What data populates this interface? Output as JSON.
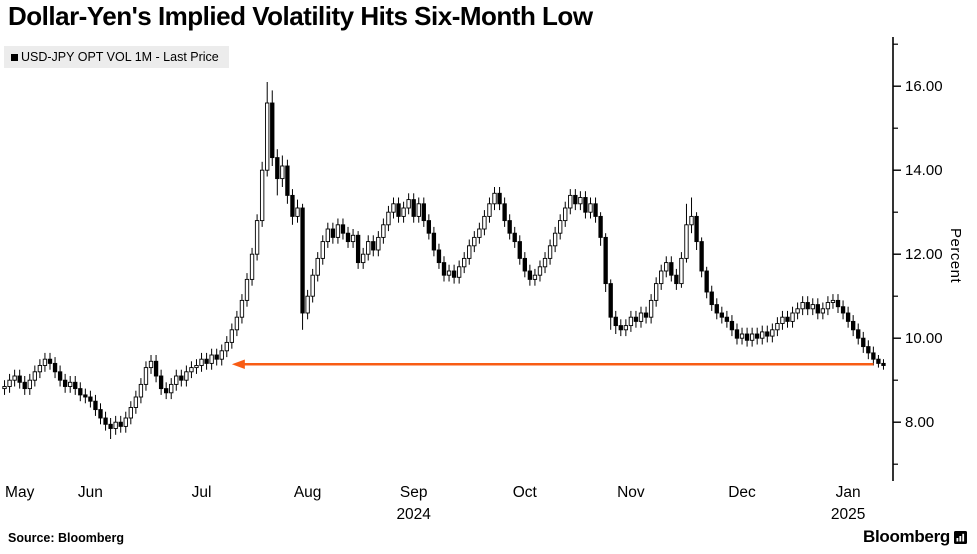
{
  "title": "Dollar-Yen's Implied Volatility Hits Six-Month Low",
  "legend": {
    "marker": "square",
    "label": "USD-JPY OPT VOL 1M - Last Price"
  },
  "source": "Source: Bloomberg",
  "brand": {
    "name": "Bloomberg"
  },
  "colors": {
    "arrow": "#f85c14",
    "candle": "#000000",
    "legend_bg": "#ececec",
    "background": "#ffffff"
  },
  "chart_data": {
    "type": "candlestick",
    "series_name": "USD-JPY OPT VOL 1M - Last Price",
    "title": "Dollar-Yen's Implied Volatility Hits Six-Month Low",
    "ylabel": "Percent",
    "ylim": [
      6.6,
      17.1
    ],
    "yticks_major": [
      8,
      10,
      12,
      14,
      16
    ],
    "ytick_labels": [
      "8.00",
      "10.00",
      "12.00",
      "14.00",
      "16.00"
    ],
    "yticks_minor": [
      7,
      9,
      11,
      13,
      15,
      17
    ],
    "grid": false,
    "legend_position": "top-left",
    "x_axis": {
      "months": [
        {
          "label": "May",
          "index": 3
        },
        {
          "label": "Jun",
          "index": 17
        },
        {
          "label": "Jul",
          "index": 39
        },
        {
          "label": "Aug",
          "index": 60
        },
        {
          "label": "Sep",
          "index": 81
        },
        {
          "label": "Oct",
          "index": 103
        },
        {
          "label": "Nov",
          "index": 124
        },
        {
          "label": "Dec",
          "index": 146
        },
        {
          "label": "Jan",
          "index": 167
        }
      ],
      "years": [
        {
          "label": "2024",
          "index": 81
        },
        {
          "label": "2025",
          "index": 167
        }
      ]
    },
    "annotation_arrow": {
      "y_value": 9.38,
      "from_index": 172,
      "to_index": 45,
      "direction": "left",
      "color": "#f85c14"
    },
    "candles_ohlc": [
      [
        8.8,
        9.0,
        8.65,
        8.85
      ],
      [
        8.85,
        9.15,
        8.7,
        9.0
      ],
      [
        9.0,
        9.25,
        8.85,
        9.1
      ],
      [
        9.1,
        9.25,
        8.8,
        8.95
      ],
      [
        8.95,
        9.1,
        8.65,
        8.8
      ],
      [
        8.8,
        9.15,
        8.65,
        9.0
      ],
      [
        9.0,
        9.35,
        8.85,
        9.2
      ],
      [
        9.2,
        9.5,
        9.05,
        9.35
      ],
      [
        9.35,
        9.65,
        9.2,
        9.5
      ],
      [
        9.5,
        9.65,
        9.25,
        9.4
      ],
      [
        9.4,
        9.55,
        9.05,
        9.2
      ],
      [
        9.2,
        9.35,
        8.85,
        9.0
      ],
      [
        9.0,
        9.15,
        8.7,
        8.85
      ],
      [
        8.85,
        9.1,
        8.7,
        8.95
      ],
      [
        8.95,
        9.1,
        8.65,
        8.8
      ],
      [
        8.8,
        8.95,
        8.5,
        8.65
      ],
      [
        8.65,
        8.8,
        8.45,
        8.6
      ],
      [
        8.6,
        8.75,
        8.35,
        8.5
      ],
      [
        8.5,
        8.65,
        8.15,
        8.3
      ],
      [
        8.3,
        8.45,
        7.95,
        8.1
      ],
      [
        8.1,
        8.25,
        7.8,
        7.95
      ],
      [
        7.95,
        8.1,
        7.6,
        7.85
      ],
      [
        7.85,
        8.15,
        7.7,
        8.0
      ],
      [
        8.0,
        8.15,
        7.75,
        7.9
      ],
      [
        7.9,
        8.25,
        7.75,
        8.1
      ],
      [
        8.1,
        8.5,
        7.95,
        8.35
      ],
      [
        8.35,
        8.75,
        8.2,
        8.6
      ],
      [
        8.6,
        9.05,
        8.45,
        8.9
      ],
      [
        8.9,
        9.45,
        8.75,
        9.3
      ],
      [
        9.3,
        9.6,
        9.15,
        9.45
      ],
      [
        9.45,
        9.6,
        8.95,
        9.1
      ],
      [
        9.1,
        9.25,
        8.65,
        8.8
      ],
      [
        8.8,
        8.95,
        8.55,
        8.7
      ],
      [
        8.7,
        9.05,
        8.55,
        8.9
      ],
      [
        8.9,
        9.25,
        8.75,
        9.1
      ],
      [
        9.1,
        9.25,
        8.85,
        9.0
      ],
      [
        9.0,
        9.35,
        8.85,
        9.2
      ],
      [
        9.2,
        9.45,
        9.05,
        9.3
      ],
      [
        9.3,
        9.5,
        9.15,
        9.35
      ],
      [
        9.35,
        9.65,
        9.2,
        9.5
      ],
      [
        9.5,
        9.65,
        9.25,
        9.4
      ],
      [
        9.4,
        9.75,
        9.25,
        9.6
      ],
      [
        9.6,
        9.75,
        9.35,
        9.5
      ],
      [
        9.5,
        9.85,
        9.35,
        9.7
      ],
      [
        9.7,
        10.05,
        9.55,
        9.9
      ],
      [
        9.9,
        10.35,
        9.75,
        10.2
      ],
      [
        10.2,
        10.65,
        10.05,
        10.5
      ],
      [
        10.5,
        11.05,
        10.35,
        10.9
      ],
      [
        10.9,
        11.55,
        10.75,
        11.4
      ],
      [
        11.4,
        12.15,
        11.25,
        12.0
      ],
      [
        12.0,
        12.95,
        11.85,
        12.8
      ],
      [
        12.8,
        14.2,
        12.65,
        14.0
      ],
      [
        14.0,
        16.1,
        13.85,
        15.6
      ],
      [
        15.6,
        15.9,
        14.1,
        14.3
      ],
      [
        14.3,
        14.5,
        13.4,
        13.8
      ],
      [
        13.8,
        14.35,
        13.6,
        14.1
      ],
      [
        14.1,
        14.25,
        13.2,
        13.4
      ],
      [
        13.4,
        13.55,
        12.7,
        12.9
      ],
      [
        12.9,
        13.3,
        12.75,
        13.1
      ],
      [
        13.1,
        13.2,
        10.2,
        10.6
      ],
      [
        10.6,
        11.15,
        10.45,
        11.0
      ],
      [
        11.0,
        11.65,
        10.85,
        11.5
      ],
      [
        11.5,
        12.05,
        11.35,
        11.9
      ],
      [
        11.9,
        12.45,
        11.75,
        12.3
      ],
      [
        12.3,
        12.75,
        12.15,
        12.6
      ],
      [
        12.6,
        12.75,
        12.25,
        12.4
      ],
      [
        12.4,
        12.85,
        12.25,
        12.7
      ],
      [
        12.7,
        12.85,
        12.35,
        12.5
      ],
      [
        12.5,
        12.65,
        12.15,
        12.3
      ],
      [
        12.3,
        12.6,
        12.15,
        12.45
      ],
      [
        12.45,
        12.55,
        11.65,
        11.8
      ],
      [
        11.8,
        12.15,
        11.65,
        12.0
      ],
      [
        12.0,
        12.45,
        11.85,
        12.3
      ],
      [
        12.3,
        12.45,
        11.95,
        12.1
      ],
      [
        12.1,
        12.55,
        11.95,
        12.4
      ],
      [
        12.4,
        12.85,
        12.25,
        12.7
      ],
      [
        12.7,
        13.15,
        12.55,
        13.0
      ],
      [
        13.0,
        13.35,
        12.85,
        13.2
      ],
      [
        13.2,
        13.35,
        12.75,
        12.9
      ],
      [
        12.9,
        13.25,
        12.75,
        13.1
      ],
      [
        13.1,
        13.45,
        12.95,
        13.3
      ],
      [
        13.3,
        13.45,
        12.75,
        12.9
      ],
      [
        12.9,
        13.35,
        12.75,
        13.2
      ],
      [
        13.2,
        13.35,
        12.65,
        12.8
      ],
      [
        12.8,
        12.95,
        12.35,
        12.5
      ],
      [
        12.5,
        12.65,
        11.95,
        12.1
      ],
      [
        12.1,
        12.25,
        11.65,
        11.8
      ],
      [
        11.8,
        11.95,
        11.35,
        11.5
      ],
      [
        11.5,
        11.75,
        11.35,
        11.6
      ],
      [
        11.6,
        11.75,
        11.3,
        11.45
      ],
      [
        11.45,
        11.85,
        11.3,
        11.7
      ],
      [
        11.7,
        12.05,
        11.55,
        11.9
      ],
      [
        11.9,
        12.35,
        11.75,
        12.2
      ],
      [
        12.2,
        12.55,
        12.05,
        12.4
      ],
      [
        12.4,
        12.75,
        12.25,
        12.6
      ],
      [
        12.6,
        13.05,
        12.45,
        12.9
      ],
      [
        12.9,
        13.35,
        12.75,
        13.2
      ],
      [
        13.2,
        13.6,
        13.05,
        13.45
      ],
      [
        13.45,
        13.6,
        13.05,
        13.2
      ],
      [
        13.2,
        13.35,
        12.65,
        12.8
      ],
      [
        12.8,
        12.95,
        12.35,
        12.5
      ],
      [
        12.5,
        12.65,
        12.15,
        12.3
      ],
      [
        12.3,
        12.45,
        11.75,
        11.9
      ],
      [
        11.9,
        12.05,
        11.45,
        11.6
      ],
      [
        11.6,
        11.75,
        11.25,
        11.4
      ],
      [
        11.4,
        11.65,
        11.25,
        11.5
      ],
      [
        11.5,
        11.85,
        11.35,
        11.7
      ],
      [
        11.7,
        12.05,
        11.55,
        11.9
      ],
      [
        11.9,
        12.35,
        11.75,
        12.2
      ],
      [
        12.2,
        12.65,
        12.05,
        12.5
      ],
      [
        12.5,
        12.95,
        12.35,
        12.8
      ],
      [
        12.8,
        13.25,
        12.65,
        13.1
      ],
      [
        13.1,
        13.55,
        12.95,
        13.4
      ],
      [
        13.4,
        13.55,
        13.05,
        13.2
      ],
      [
        13.2,
        13.5,
        13.05,
        13.35
      ],
      [
        13.35,
        13.5,
        12.85,
        13.0
      ],
      [
        13.0,
        13.35,
        12.85,
        13.2
      ],
      [
        13.2,
        13.35,
        12.75,
        12.9
      ],
      [
        12.9,
        13.0,
        12.2,
        12.4
      ],
      [
        12.4,
        12.5,
        11.1,
        11.3
      ],
      [
        11.3,
        11.4,
        10.2,
        10.5
      ],
      [
        10.5,
        10.65,
        10.1,
        10.3
      ],
      [
        10.3,
        10.45,
        10.05,
        10.2
      ],
      [
        10.2,
        10.45,
        10.05,
        10.3
      ],
      [
        10.3,
        10.65,
        10.15,
        10.5
      ],
      [
        10.5,
        10.65,
        10.25,
        10.4
      ],
      [
        10.4,
        10.75,
        10.25,
        10.6
      ],
      [
        10.6,
        10.75,
        10.35,
        10.5
      ],
      [
        10.5,
        11.05,
        10.35,
        10.9
      ],
      [
        10.9,
        11.45,
        10.75,
        11.3
      ],
      [
        11.3,
        11.75,
        11.15,
        11.6
      ],
      [
        11.6,
        11.95,
        11.45,
        11.8
      ],
      [
        11.8,
        11.95,
        11.35,
        11.5
      ],
      [
        11.5,
        11.65,
        11.15,
        11.3
      ],
      [
        11.3,
        12.05,
        11.2,
        11.9
      ],
      [
        11.9,
        13.2,
        11.8,
        12.7
      ],
      [
        12.7,
        13.35,
        12.5,
        12.9
      ],
      [
        12.9,
        13.0,
        12.1,
        12.3
      ],
      [
        12.3,
        12.4,
        11.45,
        11.6
      ],
      [
        11.6,
        11.7,
        10.95,
        11.1
      ],
      [
        11.1,
        11.25,
        10.65,
        10.8
      ],
      [
        10.8,
        10.95,
        10.45,
        10.6
      ],
      [
        10.6,
        10.75,
        10.35,
        10.5
      ],
      [
        10.5,
        10.65,
        10.25,
        10.4
      ],
      [
        10.4,
        10.55,
        10.05,
        10.2
      ],
      [
        10.2,
        10.35,
        9.85,
        10.0
      ],
      [
        10.0,
        10.25,
        9.85,
        10.1
      ],
      [
        10.1,
        10.25,
        9.8,
        9.95
      ],
      [
        9.95,
        10.25,
        9.8,
        10.1
      ],
      [
        10.1,
        10.25,
        9.85,
        10.0
      ],
      [
        10.0,
        10.3,
        9.85,
        10.15
      ],
      [
        10.15,
        10.3,
        9.9,
        10.05
      ],
      [
        10.05,
        10.35,
        9.9,
        10.2
      ],
      [
        10.2,
        10.5,
        10.05,
        10.35
      ],
      [
        10.35,
        10.65,
        10.2,
        10.5
      ],
      [
        10.5,
        10.65,
        10.25,
        10.4
      ],
      [
        10.4,
        10.75,
        10.25,
        10.6
      ],
      [
        10.6,
        10.85,
        10.45,
        10.7
      ],
      [
        10.7,
        11.0,
        10.55,
        10.85
      ],
      [
        10.85,
        11.0,
        10.55,
        10.7
      ],
      [
        10.7,
        10.95,
        10.55,
        10.8
      ],
      [
        10.8,
        10.95,
        10.45,
        10.6
      ],
      [
        10.6,
        10.85,
        10.45,
        10.7
      ],
      [
        10.7,
        11.0,
        10.55,
        10.85
      ],
      [
        10.85,
        11.05,
        10.7,
        10.9
      ],
      [
        10.9,
        11.05,
        10.6,
        10.75
      ],
      [
        10.75,
        10.9,
        10.45,
        10.6
      ],
      [
        10.6,
        10.75,
        10.25,
        10.4
      ],
      [
        10.4,
        10.55,
        10.05,
        10.2
      ],
      [
        10.2,
        10.35,
        9.85,
        10.0
      ],
      [
        10.0,
        10.15,
        9.65,
        9.8
      ],
      [
        9.8,
        9.95,
        9.5,
        9.65
      ],
      [
        9.65,
        9.8,
        9.35,
        9.5
      ],
      [
        9.5,
        9.6,
        9.3,
        9.4
      ],
      [
        9.4,
        9.5,
        9.25,
        9.35
      ]
    ]
  }
}
